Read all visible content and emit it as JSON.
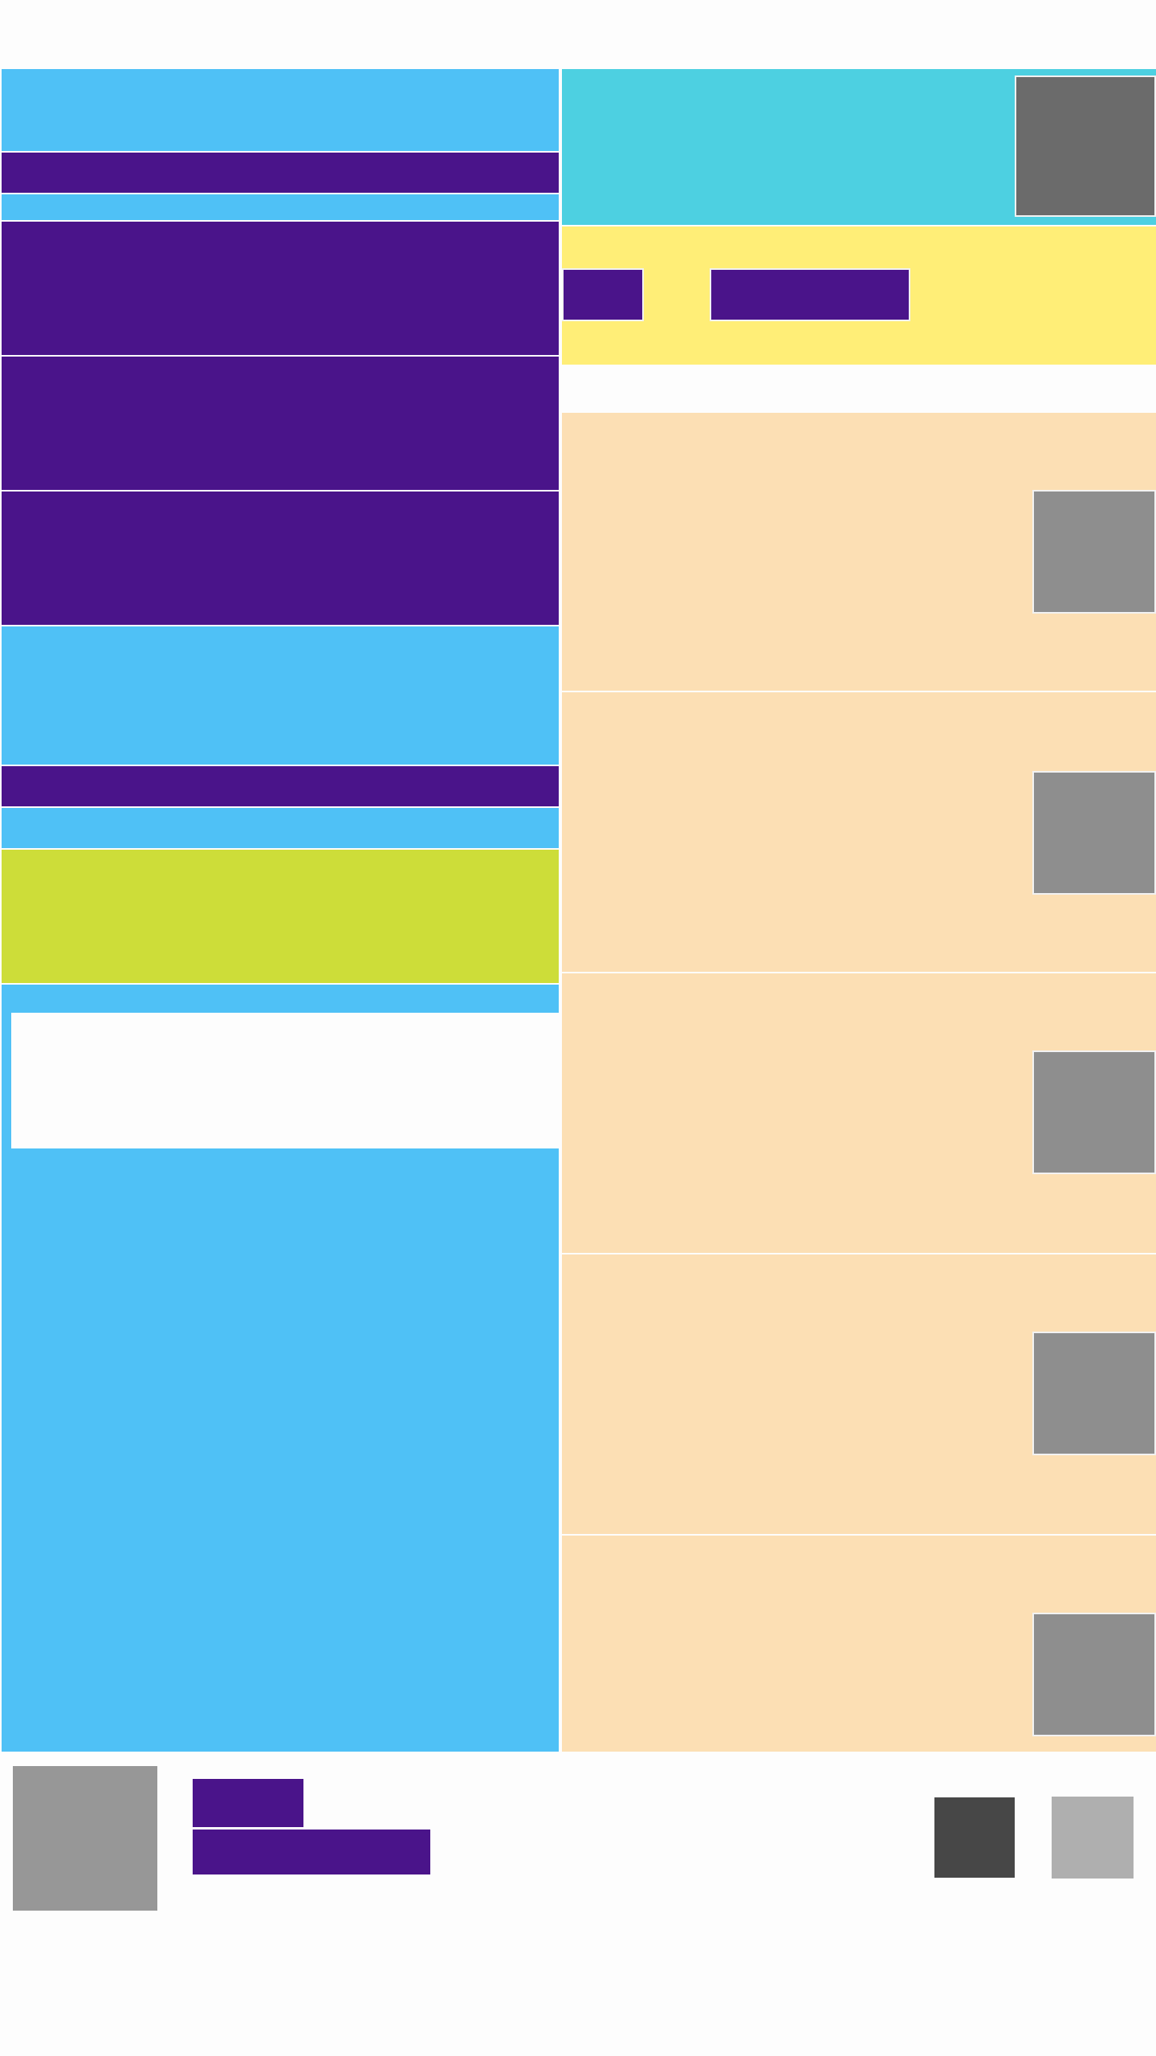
{
  "colors": {
    "sky_blue": "#4FC1F6",
    "deep_purple": "#4A148A",
    "teal": "#4DD0E1",
    "yellow": "#FFEE77",
    "peach": "#FCDFB4",
    "lime": "#CDDD39",
    "background": "#FDFDFD",
    "placeholder_gray": "#8E8E8E",
    "dark_gray": "#474747",
    "light_gray": "#AFAFAF"
  },
  "left_column": {
    "blocks": [
      {
        "role": "header-area",
        "color": "sky_blue"
      },
      {
        "role": "title-bar",
        "color": "deep_purple"
      },
      {
        "role": "spacer-strip",
        "color": "sky_blue"
      },
      {
        "role": "content-card",
        "color": "deep_purple"
      },
      {
        "role": "content-card",
        "color": "deep_purple"
      },
      {
        "role": "content-card",
        "color": "deep_purple"
      },
      {
        "role": "section-area",
        "color": "sky_blue"
      },
      {
        "role": "title-bar",
        "color": "deep_purple"
      },
      {
        "role": "spacer-strip",
        "color": "sky_blue"
      },
      {
        "role": "highlight-card",
        "color": "lime"
      },
      {
        "role": "panel",
        "color": "sky_blue"
      },
      {
        "role": "input-box",
        "color": "background"
      }
    ]
  },
  "right_column": {
    "header": {
      "color": "teal",
      "thumbnail_icon": "image-placeholder-icon"
    },
    "tabs": {
      "color": "yellow",
      "tab_count": 2
    },
    "list_items": [
      {
        "thumbnail_icon": "image-placeholder-icon",
        "color": "peach"
      },
      {
        "thumbnail_icon": "image-placeholder-icon",
        "color": "peach"
      },
      {
        "thumbnail_icon": "image-placeholder-icon",
        "color": "peach"
      },
      {
        "thumbnail_icon": "image-placeholder-icon",
        "color": "peach"
      },
      {
        "thumbnail_icon": "image-placeholder-icon",
        "color": "peach"
      }
    ]
  },
  "footer": {
    "avatar_icon": "avatar-placeholder-icon",
    "title_bar_color": "deep_purple",
    "subtitle_bar_color": "deep_purple",
    "actions": [
      {
        "icon": "dark-action-icon"
      },
      {
        "icon": "light-action-icon"
      }
    ]
  }
}
